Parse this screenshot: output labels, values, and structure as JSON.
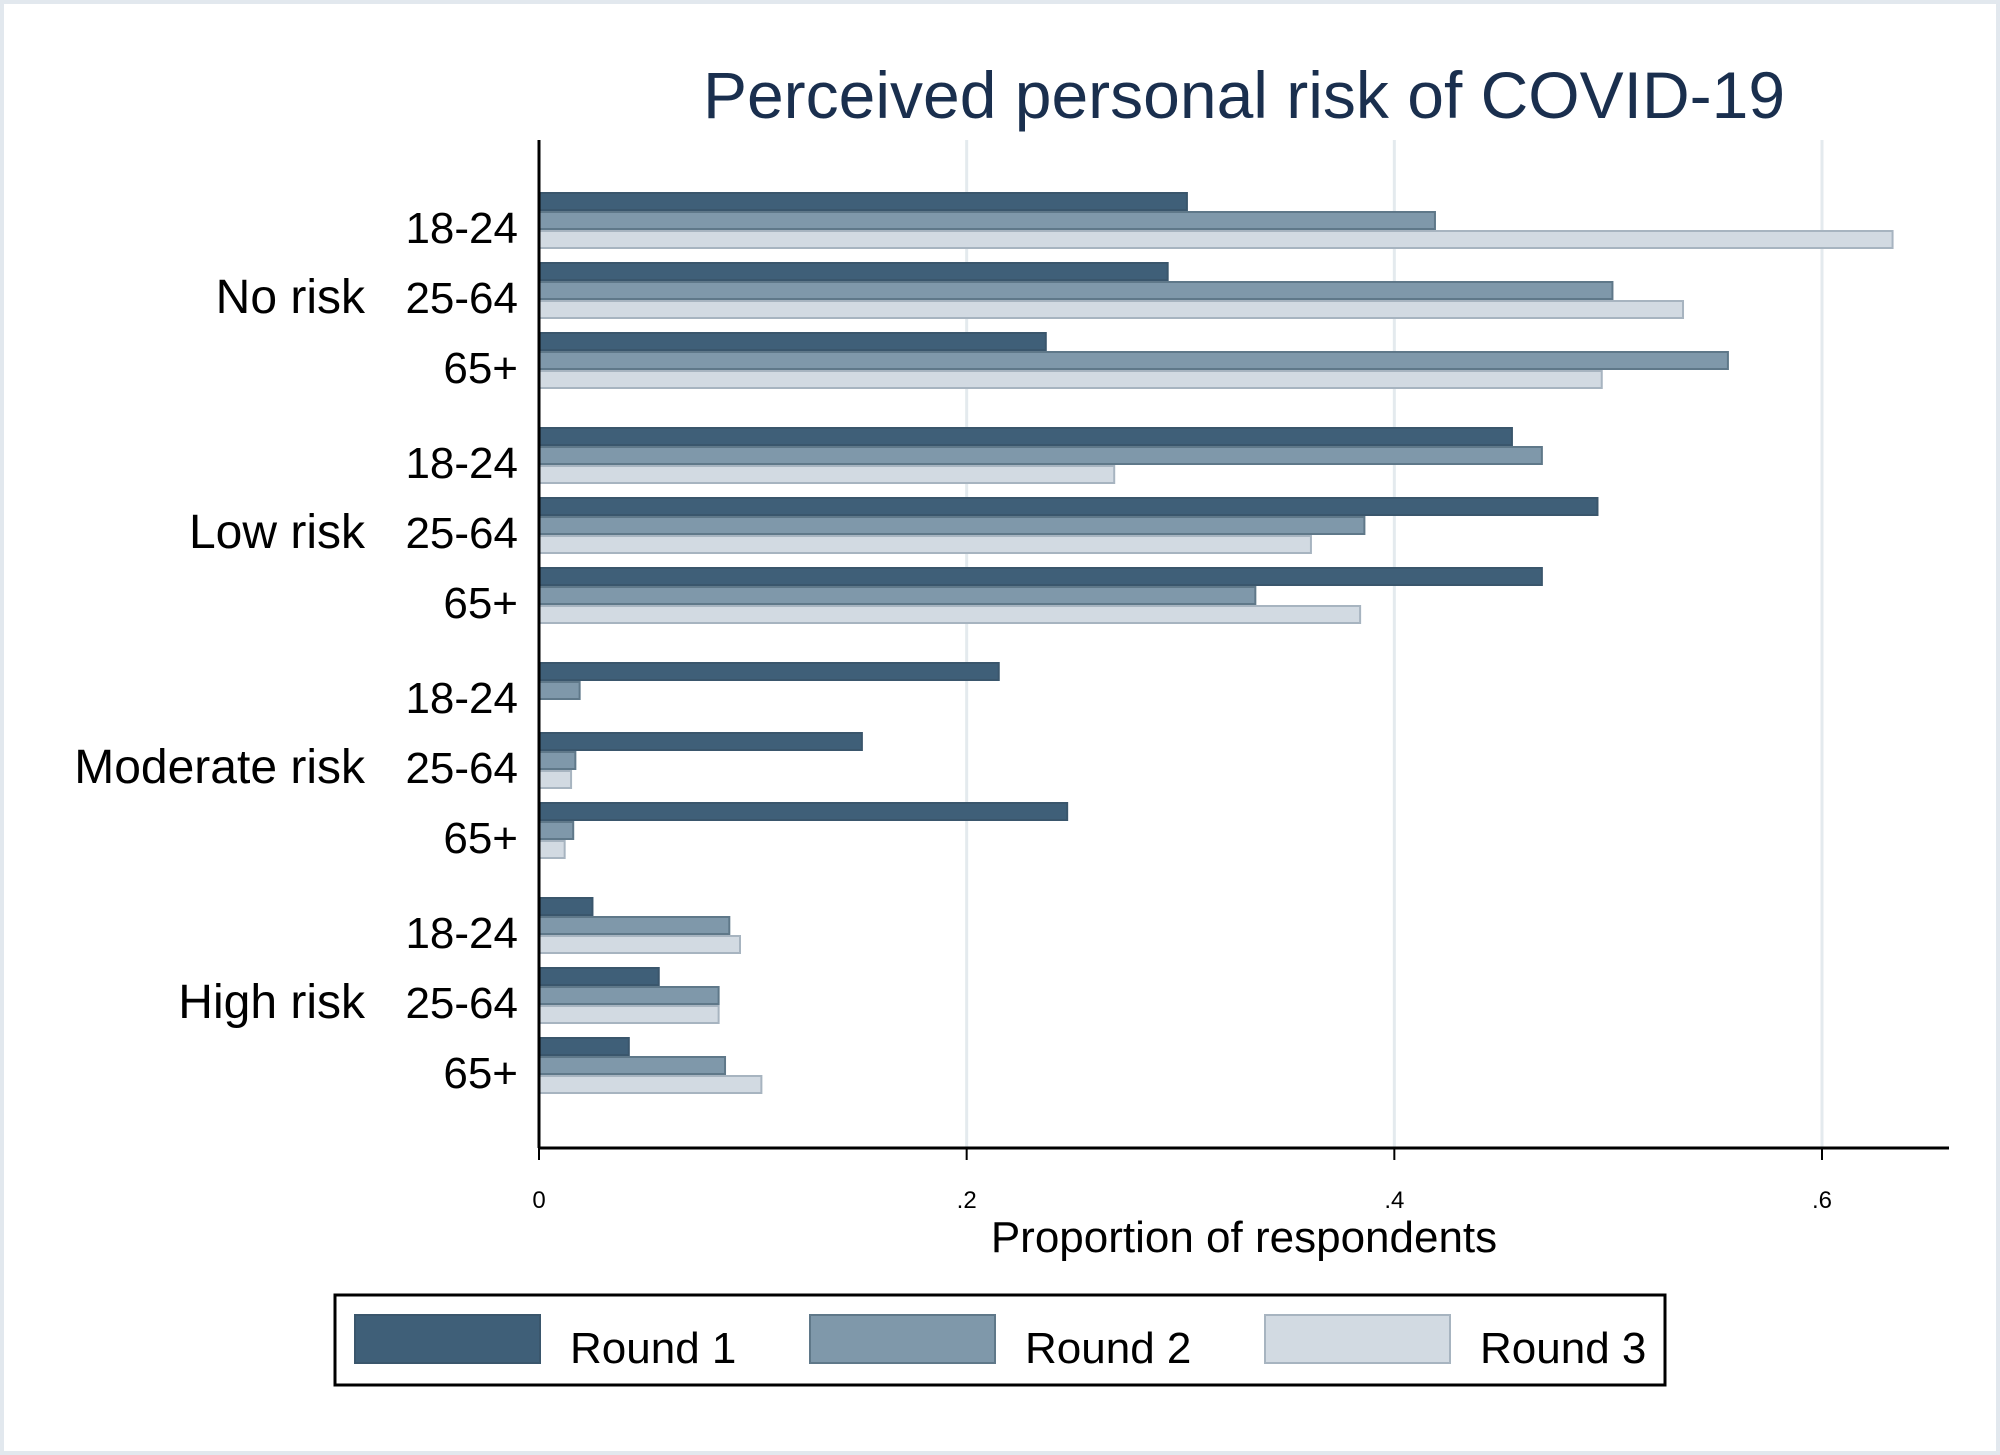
{
  "chart_data": {
    "type": "bar",
    "orientation": "horizontal",
    "title": "Perceived personal risk of COVID-19",
    "xlabel": "Proportion of respondents",
    "xlim": [
      0,
      0.66
    ],
    "x_ticks": [
      {
        "value": 0,
        "label": "0"
      },
      {
        "value": 0.2,
        "label": ".2"
      },
      {
        "value": 0.4,
        "label": ".4"
      },
      {
        "value": 0.6,
        "label": ".6"
      }
    ],
    "grid": true,
    "legend_position": "bottom",
    "colors": {
      "Round 1": "#3f5f78",
      "Round 2": "#7f98aa",
      "Round 3": "#d2dae2"
    },
    "border_colors": {
      "Round 1": "#3a566c",
      "Round 2": "#5f7889",
      "Round 3": "#a7b4c0"
    },
    "series_names": [
      "Round 1",
      "Round 2",
      "Round 3"
    ],
    "groups": [
      {
        "label": "No risk",
        "rows": [
          {
            "age": "18-24",
            "values": [
              0.303,
              0.419,
              0.633
            ]
          },
          {
            "age": "25-64",
            "values": [
              0.294,
              0.502,
              0.535
            ]
          },
          {
            "age": "65+",
            "values": [
              0.237,
              0.556,
              0.497
            ]
          }
        ]
      },
      {
        "label": "Low risk",
        "rows": [
          {
            "age": "18-24",
            "values": [
              0.455,
              0.469,
              0.269
            ]
          },
          {
            "age": "25-64",
            "values": [
              0.495,
              0.386,
              0.361
            ]
          },
          {
            "age": "65+",
            "values": [
              0.469,
              0.335,
              0.384
            ]
          }
        ]
      },
      {
        "label": "Moderate risk",
        "rows": [
          {
            "age": "18-24",
            "values": [
              0.215,
              0.019,
              0.0
            ]
          },
          {
            "age": "25-64",
            "values": [
              0.151,
              0.017,
              0.015
            ]
          },
          {
            "age": "65+",
            "values": [
              0.247,
              0.016,
              0.012
            ]
          }
        ]
      },
      {
        "label": "High risk",
        "rows": [
          {
            "age": "18-24",
            "values": [
              0.025,
              0.089,
              0.094
            ]
          },
          {
            "age": "25-64",
            "values": [
              0.056,
              0.084,
              0.084
            ]
          },
          {
            "age": "65+",
            "values": [
              0.042,
              0.087,
              0.104
            ]
          }
        ]
      }
    ]
  }
}
